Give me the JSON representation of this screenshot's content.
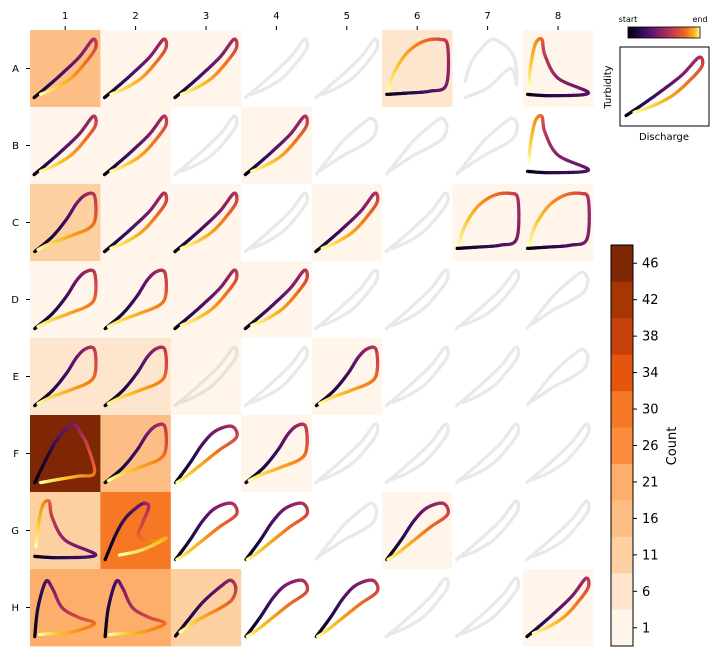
{
  "chart_data": [
    {
      "type": "heatmap",
      "columns": [
        "1",
        "2",
        "3",
        "4",
        "5",
        "6",
        "7",
        "8"
      ],
      "rows": [
        "A",
        "B",
        "C",
        "D",
        "E",
        "F",
        "G",
        "H"
      ],
      "counts": [
        [
          16,
          3,
          3,
          0,
          0,
          6,
          0,
          3
        ],
        [
          2,
          2,
          0,
          3,
          0,
          0,
          0,
          0
        ],
        [
          11,
          2,
          1,
          0,
          2,
          0,
          3,
          2
        ],
        [
          2,
          1,
          1,
          3,
          0,
          0,
          0,
          0
        ],
        [
          6,
          7,
          1,
          0,
          3,
          0,
          0,
          0
        ],
        [
          47,
          19,
          0,
          2,
          0,
          0,
          0,
          0
        ],
        [
          11,
          33,
          0,
          0,
          0,
          2,
          0,
          0
        ],
        [
          23,
          23,
          11,
          0,
          0,
          0,
          0,
          3
        ]
      ],
      "loop_shapes": [
        [
          "ramp",
          "ramp",
          "ramp",
          "ramp",
          "ramp",
          "big",
          "blob",
          "peak"
        ],
        [
          "ramp",
          "ramp",
          "ramp",
          "ramp",
          "round",
          "round",
          "round",
          "peak"
        ],
        [
          "cw",
          "ramp",
          "ramp",
          "ramp",
          "ramp",
          "ramp",
          "big",
          "big"
        ],
        [
          "cw",
          "cw",
          "ramp",
          "ramp",
          "ramp",
          "ramp",
          "ramp",
          "round"
        ],
        [
          "cw",
          "cw",
          "ramp",
          "ramp",
          "cw",
          "ramp",
          "ramp",
          "round"
        ],
        [
          "tall",
          "cw",
          "hook",
          "cw",
          "ramp",
          "ramp",
          "ramp",
          "ramp"
        ],
        [
          "peak",
          "tri",
          "hook",
          "hook",
          "round",
          "hook",
          "ramp",
          "ramp"
        ],
        [
          "hyst",
          "hyst",
          "round",
          "hook",
          "hook",
          "ramp",
          "ramp",
          "ramp"
        ]
      ],
      "loop_opacity": [
        [
          1,
          1,
          1,
          0.25,
          0.25,
          1,
          0.25,
          1
        ],
        [
          1,
          1,
          0.25,
          1,
          0.25,
          0.25,
          0.25,
          1
        ],
        [
          1,
          1,
          1,
          0.25,
          1,
          0.25,
          1,
          1
        ],
        [
          1,
          1,
          1,
          1,
          0.25,
          0.25,
          0.25,
          0.25
        ],
        [
          1,
          1,
          0.25,
          0.25,
          1,
          0.25,
          0.25,
          0.25
        ],
        [
          1,
          1,
          1,
          1,
          0.25,
          0.25,
          0.25,
          0.25
        ],
        [
          1,
          1,
          1,
          1,
          0.25,
          1,
          0.25,
          0.25
        ],
        [
          1,
          1,
          1,
          1,
          1,
          0.25,
          0.25,
          1
        ]
      ],
      "colorbar": {
        "label": "Count",
        "ticks": [
          1,
          6,
          11,
          16,
          21,
          26,
          30,
          34,
          38,
          42,
          46
        ],
        "colors": [
          "#fff5eb",
          "#fee6ce",
          "#fdd0a2",
          "#fdbe85",
          "#fdae6b",
          "#fd8d3c",
          "#f67824",
          "#e6550d",
          "#c6420a",
          "#a63603",
          "#7f2704"
        ]
      }
    },
    {
      "type": "line",
      "xlabel": "Discharge",
      "ylabel": "Turbidity",
      "gradient_legend": {
        "start": "start",
        "end": "end"
      }
    }
  ]
}
